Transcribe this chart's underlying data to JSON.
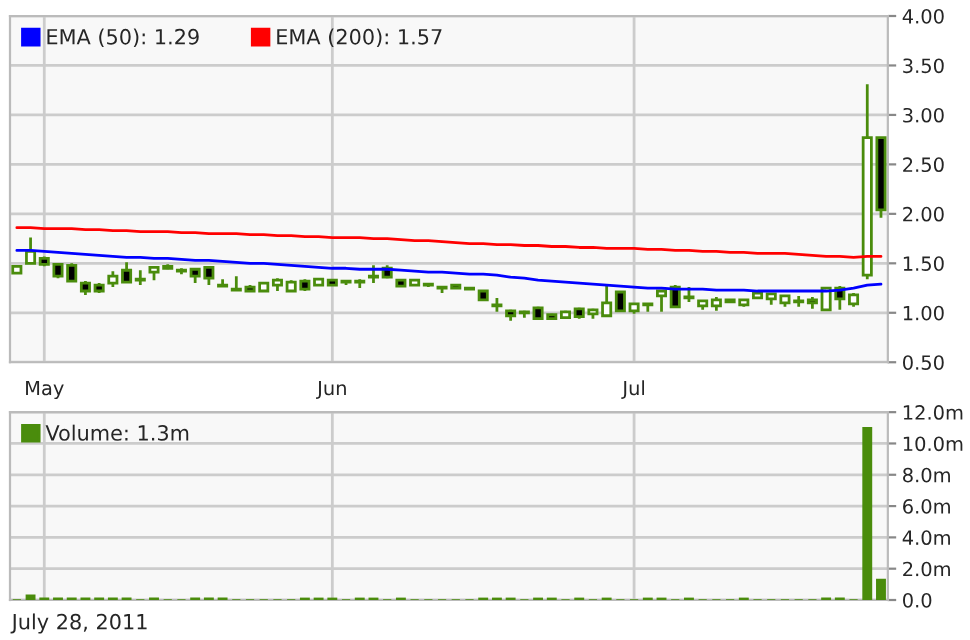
{
  "chart_data": [
    {
      "type": "candlestick",
      "categories": [
        null,
        null,
        "May",
        null,
        null,
        null,
        null,
        null,
        null,
        null,
        null,
        null,
        null,
        null,
        null,
        null,
        null,
        null,
        null,
        null,
        null,
        null,
        null,
        "Jun",
        null,
        null,
        null,
        null,
        null,
        null,
        null,
        null,
        null,
        null,
        null,
        null,
        null,
        null,
        null,
        null,
        null,
        null,
        null,
        null,
        null,
        "Jul",
        null,
        null,
        null,
        null,
        null,
        null,
        null,
        null,
        null,
        null,
        null,
        null,
        null,
        null,
        null,
        null,
        null,
        null
      ],
      "color": "#4a8c0c",
      "ohlc": [
        [
          1.4,
          1.48,
          1.4,
          1.47
        ],
        [
          1.5,
          1.76,
          1.5,
          1.62
        ],
        [
          1.55,
          1.57,
          1.47,
          1.49
        ],
        [
          1.49,
          1.5,
          1.35,
          1.37
        ],
        [
          1.48,
          1.5,
          1.31,
          1.32
        ],
        [
          1.3,
          1.32,
          1.18,
          1.22
        ],
        [
          1.28,
          1.3,
          1.2,
          1.22
        ],
        [
          1.3,
          1.42,
          1.26,
          1.37
        ],
        [
          1.43,
          1.51,
          1.3,
          1.31
        ],
        [
          1.33,
          1.43,
          1.28,
          1.34
        ],
        [
          1.41,
          1.47,
          1.33,
          1.46
        ],
        [
          1.47,
          1.49,
          1.44,
          1.45
        ],
        [
          1.43,
          1.45,
          1.39,
          1.42
        ],
        [
          1.44,
          1.45,
          1.3,
          1.37
        ],
        [
          1.46,
          1.47,
          1.28,
          1.35
        ],
        [
          1.28,
          1.34,
          1.27,
          1.27
        ],
        [
          1.24,
          1.37,
          1.23,
          1.23
        ],
        [
          1.26,
          1.28,
          1.21,
          1.22
        ],
        [
          1.22,
          1.31,
          1.22,
          1.3
        ],
        [
          1.28,
          1.35,
          1.22,
          1.33
        ],
        [
          1.22,
          1.33,
          1.22,
          1.31
        ],
        [
          1.32,
          1.34,
          1.22,
          1.24
        ],
        [
          1.28,
          1.35,
          1.28,
          1.34
        ],
        [
          1.33,
          1.34,
          1.27,
          1.28
        ],
        [
          1.32,
          1.32,
          1.28,
          1.31
        ],
        [
          1.31,
          1.34,
          1.25,
          1.32
        ],
        [
          1.36,
          1.48,
          1.3,
          1.37
        ],
        [
          1.45,
          1.48,
          1.35,
          1.36
        ],
        [
          1.33,
          1.34,
          1.26,
          1.27
        ],
        [
          1.28,
          1.34,
          1.27,
          1.33
        ],
        [
          1.29,
          1.3,
          1.26,
          1.28
        ],
        [
          1.26,
          1.27,
          1.2,
          1.25
        ],
        [
          1.28,
          1.29,
          1.24,
          1.25
        ],
        [
          1.25,
          1.25,
          1.23,
          1.24
        ],
        [
          1.22,
          1.23,
          1.12,
          1.13
        ],
        [
          1.08,
          1.15,
          1.01,
          1.07
        ],
        [
          1.02,
          1.03,
          0.92,
          0.97
        ],
        [
          1.01,
          1.02,
          0.95,
          1.0
        ],
        [
          1.05,
          1.06,
          0.93,
          0.94
        ],
        [
          0.98,
          0.99,
          0.93,
          0.94
        ],
        [
          0.95,
          1.02,
          0.95,
          1.01
        ],
        [
          1.04,
          1.05,
          0.94,
          0.96
        ],
        [
          0.99,
          1.04,
          0.94,
          1.03
        ],
        [
          0.97,
          1.27,
          0.97,
          1.1
        ],
        [
          1.21,
          1.22,
          1.01,
          1.02
        ],
        [
          1.02,
          1.1,
          0.99,
          1.09
        ],
        [
          1.08,
          1.09,
          1.01,
          1.09
        ],
        [
          1.17,
          1.23,
          1.01,
          1.22
        ],
        [
          1.26,
          1.28,
          1.06,
          1.06
        ],
        [
          1.16,
          1.26,
          1.11,
          1.15
        ],
        [
          1.07,
          1.13,
          1.03,
          1.12
        ],
        [
          1.07,
          1.16,
          1.02,
          1.13
        ],
        [
          1.13,
          1.14,
          1.1,
          1.11
        ],
        [
          1.08,
          1.14,
          1.06,
          1.13
        ],
        [
          1.15,
          1.21,
          1.14,
          1.2
        ],
        [
          1.14,
          1.2,
          1.08,
          1.19
        ],
        [
          1.1,
          1.18,
          1.06,
          1.17
        ],
        [
          1.12,
          1.17,
          1.06,
          1.11
        ],
        [
          1.13,
          1.16,
          1.04,
          1.1
        ],
        [
          1.03,
          1.26,
          1.02,
          1.25
        ],
        [
          1.25,
          1.27,
          1.03,
          1.14
        ],
        [
          1.09,
          1.2,
          1.06,
          1.18
        ],
        [
          1.38,
          3.31,
          1.34,
          2.77
        ],
        [
          2.77,
          2.77,
          1.96,
          2.04
        ]
      ],
      "series": [
        {
          "type": "line",
          "name": "EMA (50): 1.29",
          "color": "#0000ff",
          "values": [
            1.63,
            1.63,
            1.62,
            1.61,
            1.6,
            1.59,
            1.58,
            1.57,
            1.56,
            1.56,
            1.55,
            1.55,
            1.54,
            1.53,
            1.53,
            1.52,
            1.51,
            1.5,
            1.5,
            1.49,
            1.48,
            1.47,
            1.46,
            1.45,
            1.45,
            1.44,
            1.44,
            1.44,
            1.43,
            1.42,
            1.41,
            1.41,
            1.4,
            1.39,
            1.39,
            1.38,
            1.36,
            1.35,
            1.33,
            1.32,
            1.31,
            1.3,
            1.29,
            1.28,
            1.27,
            1.26,
            1.25,
            1.25,
            1.24,
            1.24,
            1.24,
            1.23,
            1.23,
            1.23,
            1.22,
            1.22,
            1.22,
            1.22,
            1.22,
            1.22,
            1.23,
            1.25,
            1.28,
            1.29
          ]
        },
        {
          "type": "line",
          "name": "EMA (200): 1.57",
          "color": "#ff0000",
          "values": [
            1.86,
            1.86,
            1.85,
            1.85,
            1.85,
            1.84,
            1.84,
            1.83,
            1.83,
            1.82,
            1.82,
            1.82,
            1.81,
            1.81,
            1.8,
            1.8,
            1.8,
            1.79,
            1.79,
            1.78,
            1.78,
            1.77,
            1.77,
            1.76,
            1.76,
            1.76,
            1.75,
            1.75,
            1.74,
            1.73,
            1.73,
            1.72,
            1.71,
            1.7,
            1.7,
            1.69,
            1.69,
            1.68,
            1.68,
            1.67,
            1.67,
            1.66,
            1.66,
            1.65,
            1.65,
            1.65,
            1.64,
            1.64,
            1.63,
            1.63,
            1.62,
            1.62,
            1.61,
            1.61,
            1.6,
            1.6,
            1.6,
            1.59,
            1.58,
            1.57,
            1.57,
            1.56,
            1.57,
            1.57
          ]
        }
      ],
      "ylim": [
        0.5,
        4.0
      ],
      "yticks": [
        {
          "value": 0.5,
          "label": "0.50"
        },
        {
          "value": 1.0,
          "label": "1.00"
        },
        {
          "value": 1.5,
          "label": "1.50"
        },
        {
          "value": 2.0,
          "label": "2.00"
        },
        {
          "value": 2.5,
          "label": "2.50"
        },
        {
          "value": 3.0,
          "label": "3.00"
        },
        {
          "value": 3.5,
          "label": "3.50"
        },
        {
          "value": 4.0,
          "label": "4.00"
        }
      ],
      "grid": true,
      "legend": "top left"
    },
    {
      "type": "bar",
      "categories": [
        null,
        null,
        null,
        null,
        null,
        null,
        null,
        null,
        null,
        null,
        null,
        null,
        null,
        null,
        null,
        null,
        null,
        null,
        null,
        null,
        null,
        null,
        null,
        null,
        null,
        null,
        null,
        null,
        null,
        null,
        null,
        null,
        null,
        null,
        null,
        null,
        null,
        null,
        null,
        null,
        null,
        null,
        null,
        null,
        null,
        null,
        null,
        null,
        null,
        null,
        null,
        null,
        null,
        null,
        null,
        null,
        null,
        null,
        null,
        null,
        null,
        null,
        null,
        null
      ],
      "series": [
        {
          "name": "Volume: 1.3m",
          "color": "#4a8c0c",
          "values": [
            0,
            0.3,
            0.1,
            0.1,
            0.1,
            0.1,
            0.1,
            0.1,
            0.1,
            0,
            0.1,
            0,
            0,
            0.1,
            0.1,
            0.1,
            0,
            0,
            0,
            0,
            0,
            0.1,
            0.1,
            0.1,
            0,
            0.1,
            0.1,
            0,
            0.1,
            0,
            0,
            0,
            0,
            0,
            0.1,
            0.1,
            0.1,
            0,
            0.1,
            0.1,
            0,
            0.1,
            0,
            0.1,
            0,
            0,
            0.1,
            0.1,
            0,
            0.1,
            0,
            0,
            0,
            0.1,
            0,
            0,
            0,
            0,
            0,
            0.1,
            0.1,
            0,
            11.0,
            1.3
          ]
        }
      ],
      "ylim": [
        0,
        12
      ],
      "yticks": [
        {
          "value": 0,
          "label": "0.0"
        },
        {
          "value": 2,
          "label": "2.0m"
        },
        {
          "value": 4,
          "label": "4.0m"
        },
        {
          "value": 6,
          "label": "6.0m"
        },
        {
          "value": 8,
          "label": "8.0m"
        },
        {
          "value": 10,
          "label": "10.0m"
        },
        {
          "value": 12,
          "label": "12.0m"
        }
      ],
      "tick_labels": "y",
      "grid": true,
      "legend": "top left",
      "annotations": [
        "July 28, 2011"
      ]
    }
  ]
}
